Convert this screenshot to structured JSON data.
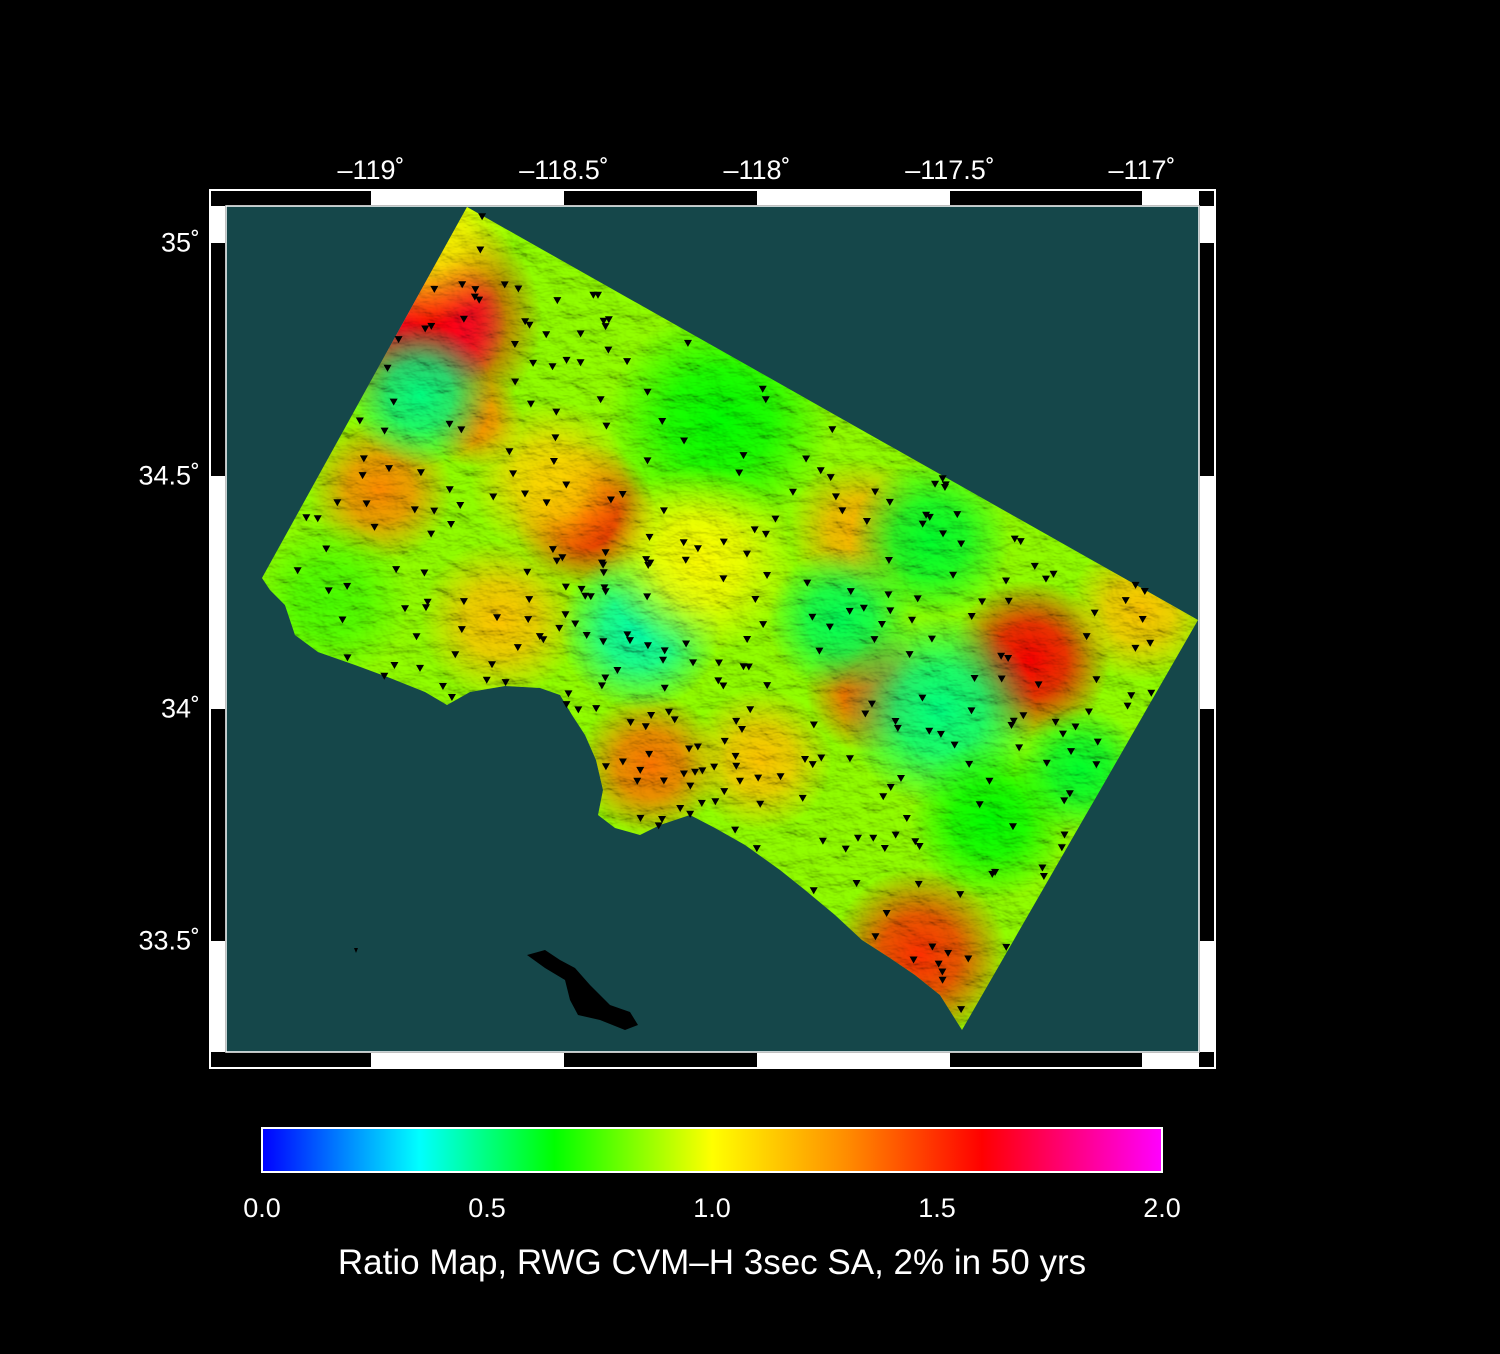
{
  "map": {
    "title": "Ratio Map, RWG CVM–H 3sec SA, 2% in 50 yrs",
    "x_ticks": [
      "–119˚",
      "–118.5˚",
      "–118˚",
      "–117.5˚",
      "–117˚"
    ],
    "y_ticks": [
      "35˚",
      "34.5˚",
      "34˚",
      "33.5˚"
    ],
    "lon_range": [
      -119.4,
      -116.9
    ],
    "lat_range": [
      33.25,
      35.1
    ],
    "ocean_color": "#15474a",
    "station_marker": "inverted-triangle-black"
  },
  "colorbar": {
    "ticks": [
      "0.0",
      "0.5",
      "1.0",
      "1.5",
      "2.0"
    ],
    "range": [
      0,
      2
    ],
    "stops": [
      {
        "value": 0.0,
        "color": "#0000ff"
      },
      {
        "value": 0.35,
        "color": "#00ffff"
      },
      {
        "value": 0.65,
        "color": "#00ff00"
      },
      {
        "value": 1.0,
        "color": "#ffff00"
      },
      {
        "value": 1.3,
        "color": "#ff8c00"
      },
      {
        "value": 1.6,
        "color": "#ff0000"
      },
      {
        "value": 2.0,
        "color": "#ff00ff"
      }
    ]
  }
}
